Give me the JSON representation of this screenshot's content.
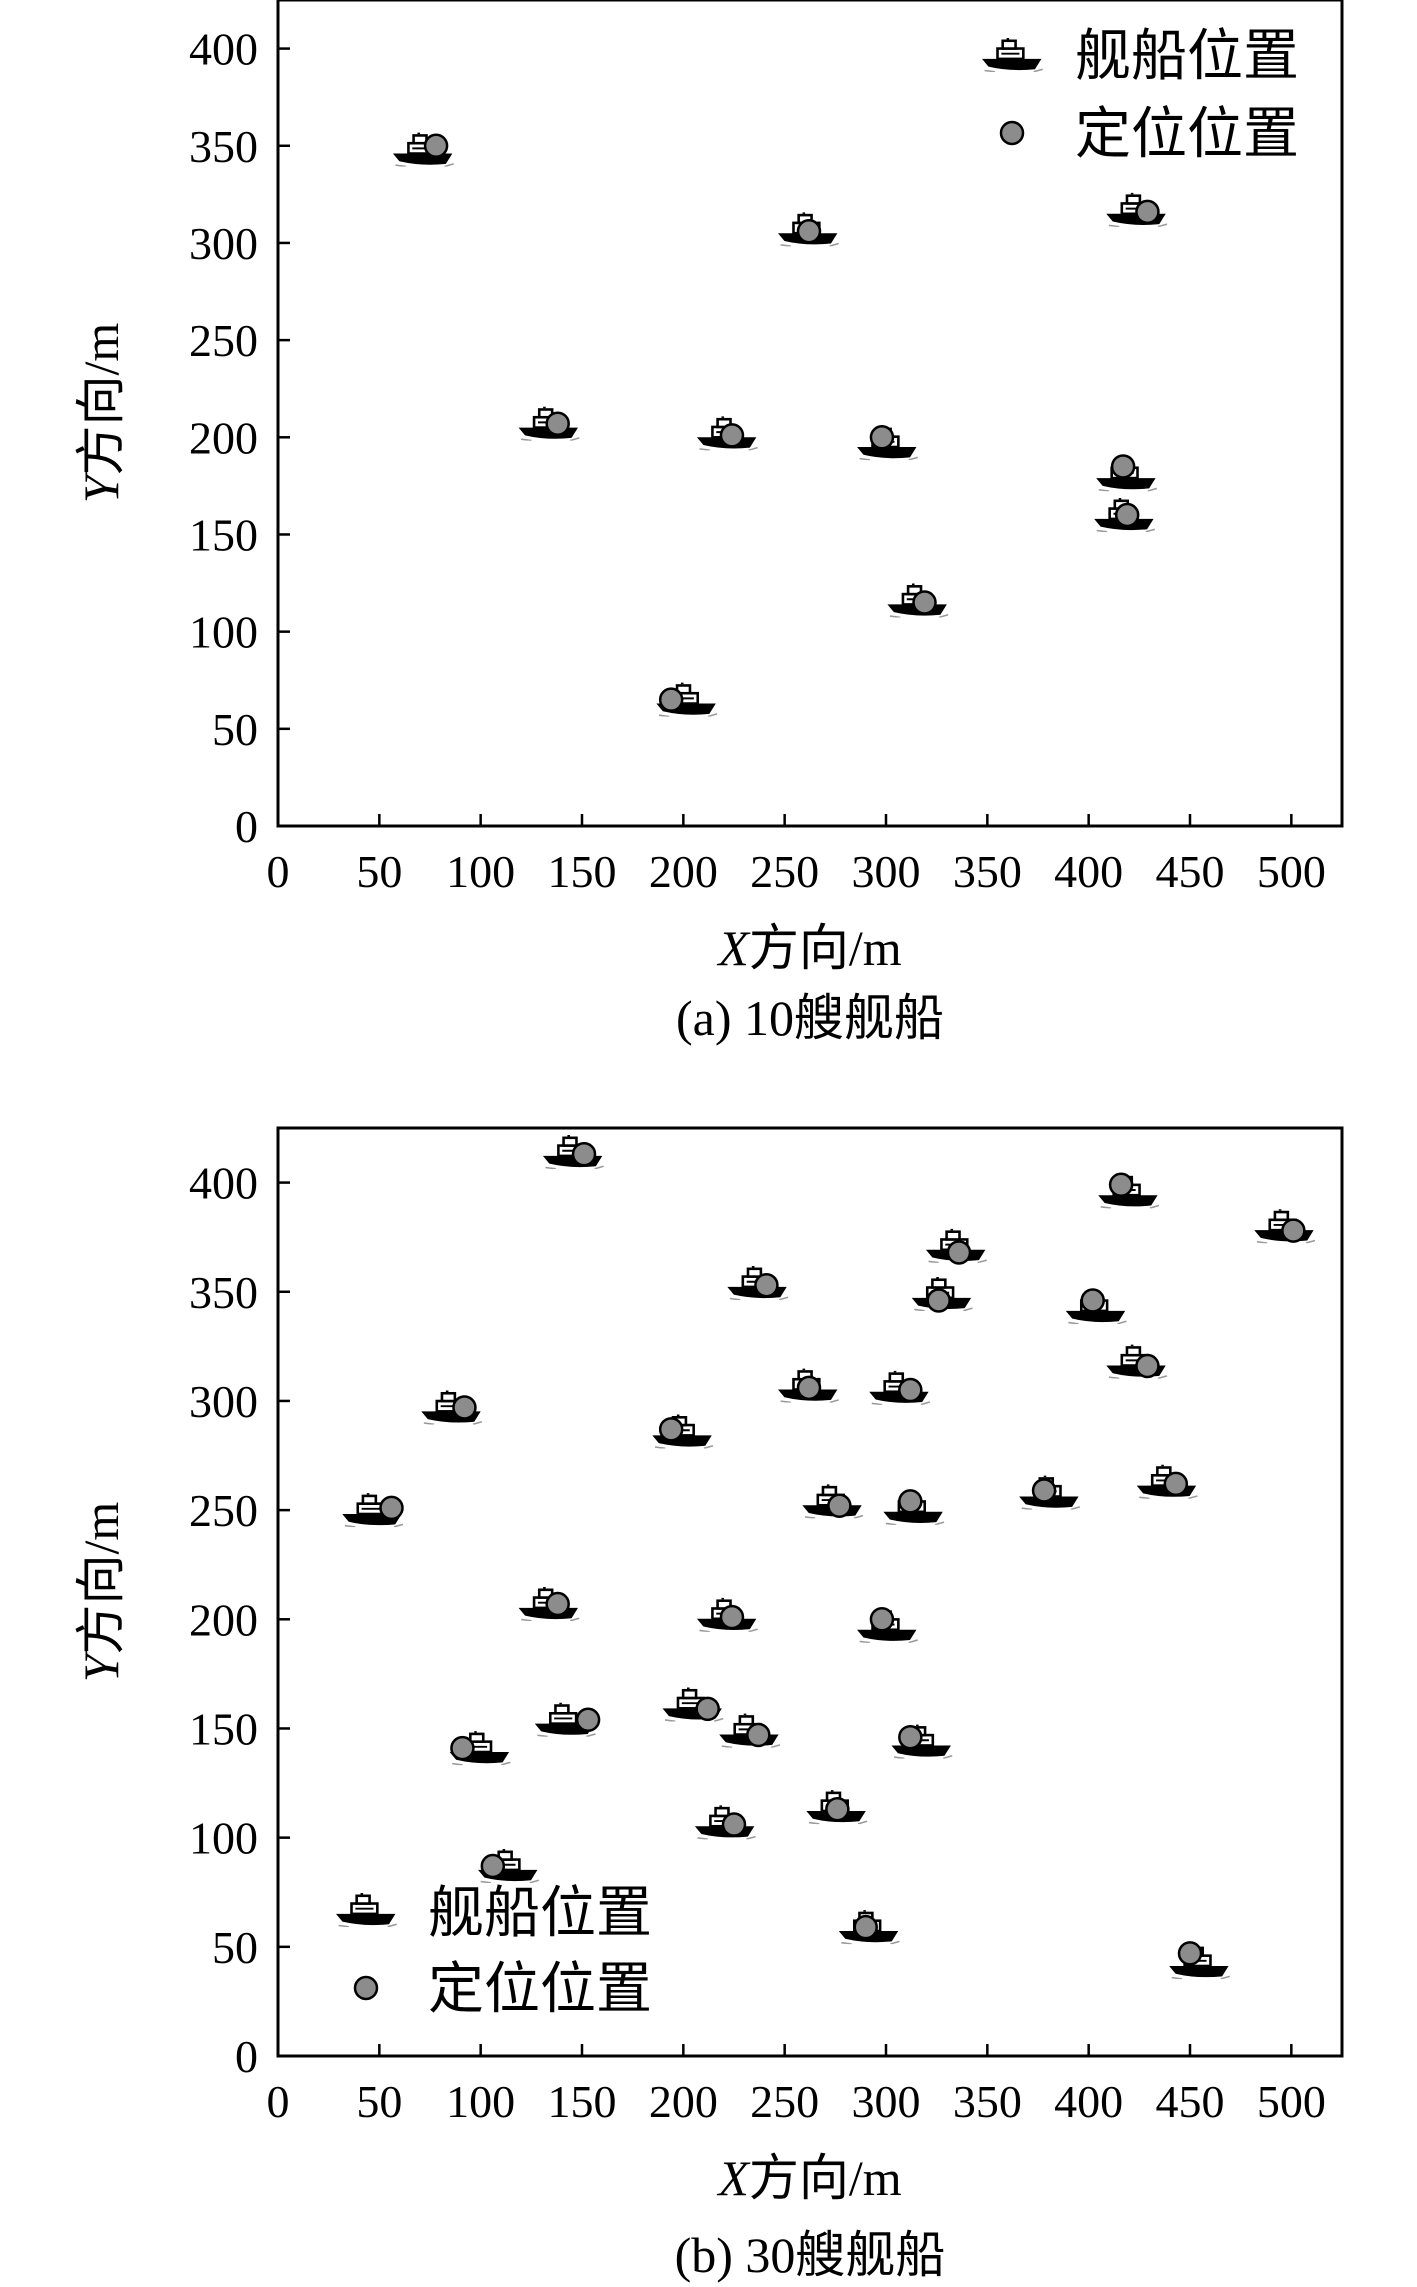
{
  "chart_data": [
    {
      "type": "scatter",
      "caption": "(a) 10艘舰船",
      "xlabel_var": "X",
      "xlabel_rest": "方向/m",
      "ylabel_var": "Y",
      "ylabel_rest": "方向/m",
      "xlim": [
        0,
        525
      ],
      "ylim": [
        0,
        425
      ],
      "xticks": [
        0,
        50,
        100,
        150,
        200,
        250,
        300,
        350,
        400,
        450,
        500
      ],
      "yticks": [
        0,
        50,
        100,
        150,
        200,
        250,
        300,
        350,
        400
      ],
      "legend_position": "top-right",
      "legend": [
        "舰船位置",
        "定位位置"
      ],
      "series": [
        {
          "name": "舰船位置",
          "points": [
            [
              72,
              348
            ],
            [
              134,
              207
            ],
            [
              222,
              202
            ],
            [
              262,
              307
            ],
            [
              301,
              197
            ],
            [
              316,
              116
            ],
            [
              202,
              65
            ],
            [
              424,
              317
            ],
            [
              419,
              181
            ],
            [
              418,
              160
            ]
          ]
        },
        {
          "name": "定位位置",
          "points": [
            [
              78,
              350
            ],
            [
              138,
              207
            ],
            [
              224,
              201
            ],
            [
              262,
              306
            ],
            [
              298,
              200
            ],
            [
              319,
              115
            ],
            [
              194,
              65
            ],
            [
              429,
              316
            ],
            [
              417,
              185
            ],
            [
              419,
              160
            ]
          ]
        }
      ]
    },
    {
      "type": "scatter",
      "caption": "(b) 30艘舰船",
      "xlabel_var": "X",
      "xlabel_rest": "方向/m",
      "ylabel_var": "Y",
      "ylabel_rest": "方向/m",
      "xlim": [
        0,
        525
      ],
      "ylim": [
        0,
        425
      ],
      "xticks": [
        0,
        50,
        100,
        150,
        200,
        250,
        300,
        350,
        400,
        450,
        500
      ],
      "yticks": [
        0,
        50,
        100,
        150,
        200,
        250,
        300,
        350,
        400
      ],
      "legend_position": "bottom-left",
      "legend": [
        "舰船位置",
        "定位位置"
      ],
      "series": [
        {
          "name": "舰船位置",
          "points": [
            [
              146,
              414
            ],
            [
              237,
              354
            ],
            [
              86,
              297
            ],
            [
              200,
              286
            ],
            [
              262,
              307
            ],
            [
              307,
              306
            ],
            [
              47,
              250
            ],
            [
              274,
              254
            ],
            [
              314,
              251
            ],
            [
              335,
              371
            ],
            [
              328,
              349
            ],
            [
              420,
              396
            ],
            [
              404,
              343
            ],
            [
              424,
              318
            ],
            [
              381,
              258
            ],
            [
              439,
              263
            ],
            [
              497,
              380
            ],
            [
              134,
              207
            ],
            [
              222,
              202
            ],
            [
              301,
              197
            ],
            [
              100,
              141
            ],
            [
              142,
              154
            ],
            [
              205,
              161
            ],
            [
              233,
              149
            ],
            [
              318,
              144
            ],
            [
              114,
              87
            ],
            [
              221,
              107
            ],
            [
              276,
              114
            ],
            [
              292,
              59
            ],
            [
              455,
              43
            ]
          ]
        },
        {
          "name": "定位位置",
          "points": [
            [
              151,
              413
            ],
            [
              241,
              353
            ],
            [
              92,
              297
            ],
            [
              194,
              287
            ],
            [
              262,
              306
            ],
            [
              312,
              305
            ],
            [
              56,
              251
            ],
            [
              277,
              252
            ],
            [
              312,
              254
            ],
            [
              336,
              368
            ],
            [
              326,
              346
            ],
            [
              416,
              399
            ],
            [
              402,
              346
            ],
            [
              429,
              316
            ],
            [
              378,
              259
            ],
            [
              443,
              262
            ],
            [
              501,
              378
            ],
            [
              138,
              207
            ],
            [
              224,
              201
            ],
            [
              298,
              200
            ],
            [
              91,
              141
            ],
            [
              153,
              154
            ],
            [
              212,
              159
            ],
            [
              237,
              147
            ],
            [
              312,
              146
            ],
            [
              106,
              87
            ],
            [
              225,
              106
            ],
            [
              276,
              113
            ],
            [
              290,
              59
            ],
            [
              450,
              47
            ]
          ]
        }
      ]
    }
  ]
}
